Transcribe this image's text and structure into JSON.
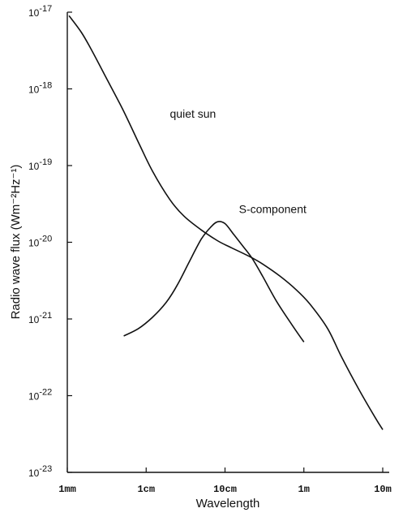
{
  "chart_data": {
    "type": "line",
    "title": "",
    "xlabel": "Wavelength",
    "ylabel": "Radio wave flux (Wm⁻²Hz⁻¹)",
    "x_scale": "log",
    "y_scale": "log",
    "xlim": [
      0.001,
      10
    ],
    "ylim": [
      1e-23,
      1e-17
    ],
    "x_ticks": [
      {
        "value": 0.001,
        "label": "1mm"
      },
      {
        "value": 0.01,
        "label": "1cm"
      },
      {
        "value": 0.1,
        "label": "10cm"
      },
      {
        "value": 1,
        "label": "1m"
      },
      {
        "value": 10,
        "label": "10m"
      }
    ],
    "y_ticks": [
      {
        "value": 1e-17,
        "label_base": "10",
        "label_exp": "-17"
      },
      {
        "value": 1e-18,
        "label_base": "10",
        "label_exp": "-18"
      },
      {
        "value": 1e-19,
        "label_base": "10",
        "label_exp": "-19"
      },
      {
        "value": 1e-20,
        "label_base": "10",
        "label_exp": "-20"
      },
      {
        "value": 1e-21,
        "label_base": "10",
        "label_exp": "-21"
      },
      {
        "value": 1e-22,
        "label_base": "10",
        "label_exp": "-22"
      },
      {
        "value": 1e-23,
        "label_base": "10",
        "label_exp": "-23"
      }
    ],
    "grid": false,
    "series": [
      {
        "name": "quiet sun",
        "x": [
          0.00105,
          0.0015,
          0.002,
          0.003,
          0.005,
          0.008,
          0.012,
          0.02,
          0.03,
          0.05,
          0.08,
          0.12,
          0.2,
          0.3,
          0.5,
          0.8,
          1.2,
          2,
          3,
          5,
          8,
          10
        ],
        "y": [
          9e-18,
          5.5e-18,
          3.3e-18,
          1.5e-18,
          5.5e-19,
          2e-19,
          8.5e-20,
          3.6e-20,
          2.2e-20,
          1.45e-20,
          1.05e-20,
          8.5e-21,
          6.6e-21,
          5.2e-21,
          3.6e-21,
          2.4e-21,
          1.55e-21,
          7.5e-22,
          3.2e-22,
          1.2e-22,
          5.2e-23,
          3.6e-23
        ]
      },
      {
        "name": "S-component",
        "x": [
          0.0052,
          0.008,
          0.012,
          0.018,
          0.025,
          0.035,
          0.05,
          0.065,
          0.08,
          0.1,
          0.13,
          0.17,
          0.22,
          0.3,
          0.45,
          0.7,
          1.0
        ],
        "y": [
          6e-22,
          7.5e-22,
          1.05e-21,
          1.65e-21,
          2.8e-21,
          5.5e-21,
          1.1e-20,
          1.55e-20,
          1.85e-20,
          1.75e-20,
          1.25e-20,
          8.8e-21,
          6.2e-21,
          3.6e-21,
          1.7e-21,
          8.5e-22,
          5e-22
        ]
      }
    ],
    "annotations": [
      {
        "text": "quiet sun",
        "x": 0.02,
        "y": 4.2e-19
      },
      {
        "text": "S-component",
        "x": 0.15,
        "y": 2.4e-20
      }
    ]
  }
}
